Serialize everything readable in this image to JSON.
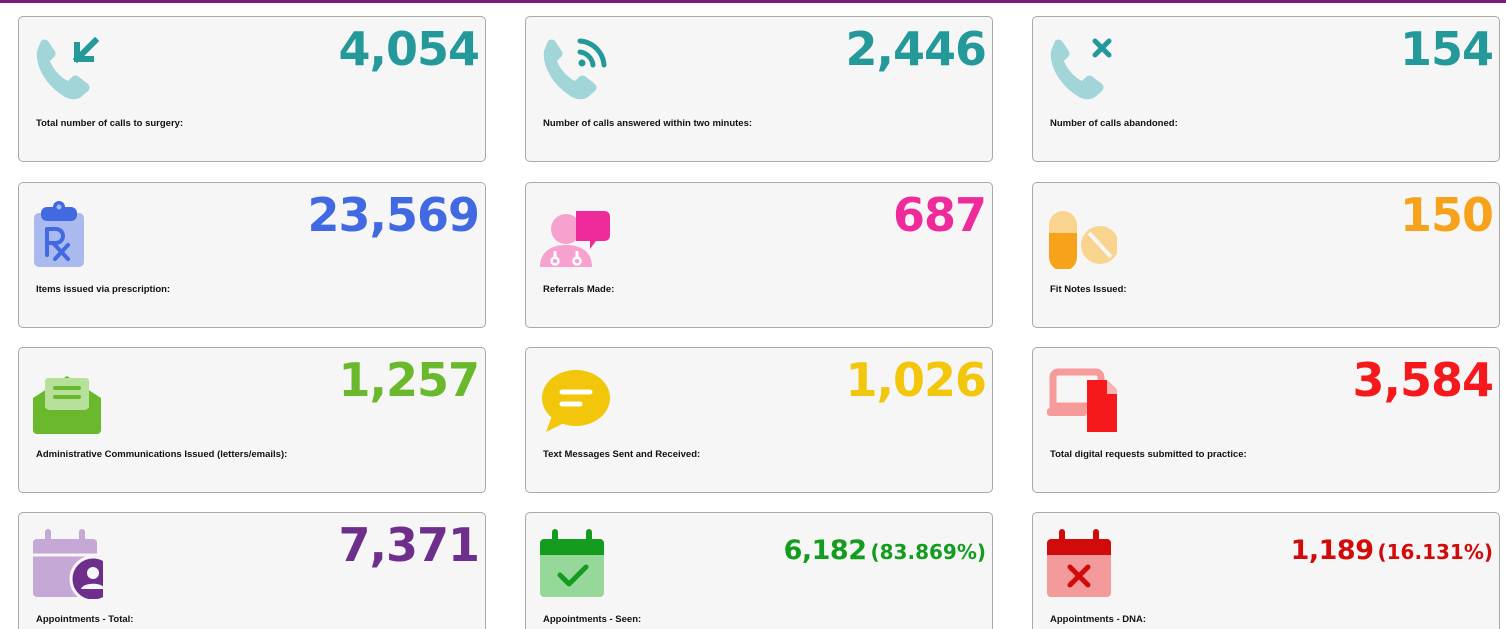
{
  "cards": [
    {
      "value": "4,054",
      "label": "Total number of calls to surgery:",
      "color": "#23999a",
      "icon": "phone-incoming-icon"
    },
    {
      "value": "2,446",
      "label": "Number of calls answered within two minutes:",
      "color": "#23999a",
      "icon": "phone-active-icon"
    },
    {
      "value": "154",
      "label": "Number of calls abandoned:",
      "color": "#23999a",
      "icon": "phone-missed-icon"
    },
    {
      "value": "23,569",
      "label": "Items issued via prescription:",
      "color": "#4169e1",
      "icon": "prescription-clipboard-icon"
    },
    {
      "value": "687",
      "label": "Referrals Made:",
      "color": "#ef2b9b",
      "icon": "doctor-chat-icon"
    },
    {
      "value": "150",
      "label": "Fit Notes Issued:",
      "color": "#f7a21b",
      "icon": "pills-icon"
    },
    {
      "value": "1,257",
      "label": "Administrative Communications Issued (letters/emails):",
      "color": "#6ab92c",
      "icon": "open-envelope-icon"
    },
    {
      "value": "1,026",
      "label": "Text Messages Sent and Received:",
      "color": "#f2c60a",
      "icon": "chat-bubble-icon"
    },
    {
      "value": "3,584",
      "label": "Total digital requests submitted to practice:",
      "color": "#f5191b",
      "icon": "devices-icon"
    },
    {
      "value": "7,371",
      "pct": "",
      "label": "Appointments - Total:",
      "color": "#6e2f8c",
      "icon": "calendar-user-icon"
    },
    {
      "value": "6,182",
      "pct": "(83.869%)",
      "label": "Appointments - Seen:",
      "color": "#139c1e",
      "icon": "calendar-check-icon"
    },
    {
      "value": "1,189",
      "pct": "(16.131%)",
      "label": "Appointments - DNA:",
      "color": "#d10a0a",
      "icon": "calendar-cross-icon"
    }
  ]
}
